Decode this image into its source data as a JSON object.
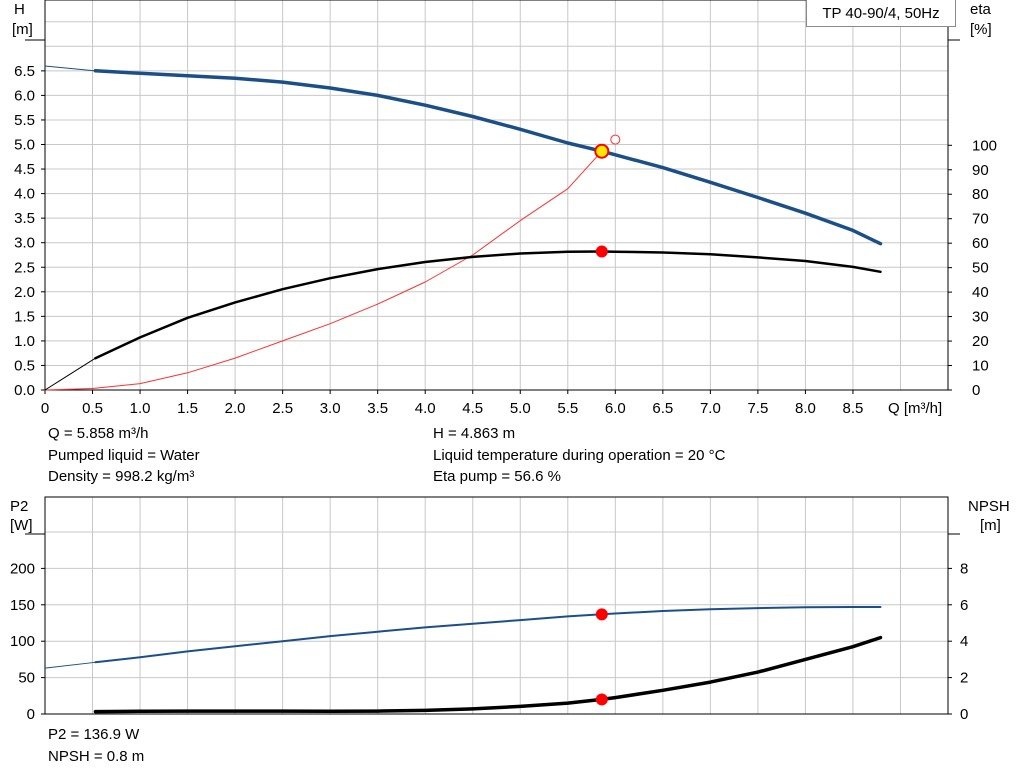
{
  "model_label": "TP 40-90/4, 50Hz",
  "top_axes": {
    "y_left_label": [
      "H",
      "[m]"
    ],
    "y_right_label": [
      "eta",
      "[%]"
    ],
    "x_label": "Q [m³/h]",
    "y_left_ticks": [
      "0.0",
      "0.5",
      "1.0",
      "1.5",
      "2.0",
      "2.5",
      "3.0",
      "3.5",
      "4.0",
      "4.5",
      "5.0",
      "5.5",
      "6.0",
      "6.5"
    ],
    "y_right_ticks": [
      "0",
      "10",
      "20",
      "30",
      "40",
      "50",
      "60",
      "70",
      "80",
      "90",
      "100"
    ],
    "x_ticks": [
      "0",
      "0.5",
      "1.0",
      "1.5",
      "2.0",
      "2.5",
      "3.0",
      "3.5",
      "4.0",
      "4.5",
      "5.0",
      "5.5",
      "6.0",
      "6.5",
      "7.0",
      "7.5",
      "8.0",
      "8.5"
    ]
  },
  "bottom_axes": {
    "y_left_label": [
      "P2",
      "[W]"
    ],
    "y_right_label": [
      "NPSH",
      "[m]"
    ],
    "y_left_ticks": [
      "0",
      "50",
      "100",
      "150",
      "200"
    ],
    "y_right_ticks": [
      "0",
      "2",
      "4",
      "6",
      "8"
    ]
  },
  "operating_point": {
    "q": "Q = 5.858 m³/h",
    "h": "H = 4.863 m",
    "liquid": "Pumped liquid = Water",
    "temperature": "Liquid temperature during operation = 20 °C",
    "density": "Density = 998.2 kg/m³",
    "eta": "Eta pump = 56.6 %",
    "p2": "P2 = 136.9 W",
    "npsh": "NPSH = 0.8 m"
  },
  "colors": {
    "head": "#1b4f8a",
    "power": "#1b4f8a",
    "eta": "#000000",
    "npsh": "#000000",
    "system": "#ff3030",
    "point": "#ff0000",
    "duty": "#ffe800"
  },
  "chart_data": [
    {
      "type": "line",
      "title": "TP 40-90/4, 50Hz",
      "xlabel": "Q [m³/h]",
      "ylabel": "H [m]",
      "y2label": "eta [%]",
      "xlim": [
        0,
        9.5
      ],
      "ylim": [
        0,
        7.0
      ],
      "y2lim": [
        0,
        100
      ],
      "grid": true,
      "series": [
        {
          "name": "H",
          "axis": "left",
          "x": [
            0,
            0.53,
            1.0,
            1.5,
            2.0,
            2.5,
            3.0,
            3.5,
            4.0,
            4.5,
            5.0,
            5.5,
            5.858,
            6.0,
            6.5,
            7.0,
            7.5,
            8.0,
            8.5,
            8.79
          ],
          "y": [
            6.6,
            6.5,
            6.45,
            6.4,
            6.35,
            6.27,
            6.15,
            6.0,
            5.8,
            5.57,
            5.31,
            5.03,
            4.863,
            4.79,
            4.53,
            4.23,
            3.92,
            3.6,
            3.25,
            2.98
          ]
        },
        {
          "name": "eta",
          "axis": "right",
          "x": [
            0,
            0.53,
            1.0,
            1.5,
            2.0,
            2.5,
            3.0,
            3.5,
            4.0,
            4.5,
            5.0,
            5.5,
            5.858,
            6.0,
            6.5,
            7.0,
            7.5,
            8.0,
            8.5,
            8.79
          ],
          "y": [
            0,
            13,
            21.5,
            29.5,
            35.8,
            41.2,
            45.7,
            49.4,
            52.3,
            54.4,
            55.8,
            56.5,
            56.6,
            56.5,
            56.2,
            55.5,
            54.2,
            52.7,
            50.3,
            48.3
          ]
        },
        {
          "name": "system",
          "axis": "left",
          "x": [
            0,
            0.5,
            1.0,
            1.5,
            2.0,
            2.5,
            3.0,
            3.5,
            4.0,
            4.5,
            5.0,
            5.5,
            5.858
          ],
          "y": [
            0,
            0.03,
            0.13,
            0.35,
            0.65,
            1.0,
            1.35,
            1.75,
            2.2,
            2.75,
            3.45,
            4.1,
            4.863
          ]
        }
      ],
      "points": [
        {
          "name": "duty-point",
          "x": 5.858,
          "y": 4.863,
          "axis": "left"
        },
        {
          "name": "eta-point",
          "x": 5.858,
          "y": 56.6,
          "axis": "right"
        },
        {
          "name": "setpoint",
          "x": 6.0,
          "y": 5.1,
          "axis": "left"
        }
      ]
    },
    {
      "type": "line",
      "xlim": [
        0,
        9.5
      ],
      "ylabel": "P2 [W]",
      "y2label": "NPSH [m]",
      "ylim": [
        0,
        200
      ],
      "y2lim": [
        0,
        8
      ],
      "grid": true,
      "series": [
        {
          "name": "P2",
          "axis": "left",
          "x": [
            0,
            0.53,
            1.0,
            1.5,
            2.0,
            2.5,
            3.0,
            3.5,
            4.0,
            4.5,
            5.0,
            5.5,
            5.858,
            6.0,
            6.5,
            7.0,
            7.5,
            8.0,
            8.5,
            8.79
          ],
          "y": [
            63,
            71,
            78,
            86,
            93,
            100,
            107,
            113,
            119,
            124,
            129,
            134,
            136.9,
            138,
            141.5,
            144,
            145.5,
            146.5,
            147,
            147
          ]
        },
        {
          "name": "NPSH",
          "axis": "right",
          "x": [
            0.53,
            1.0,
            1.5,
            2.0,
            2.5,
            3.0,
            3.5,
            4.0,
            4.5,
            5.0,
            5.5,
            5.858,
            6.0,
            6.5,
            7.0,
            7.5,
            8.0,
            8.5,
            8.79
          ],
          "y": [
            0.13,
            0.15,
            0.16,
            0.16,
            0.16,
            0.15,
            0.16,
            0.2,
            0.28,
            0.42,
            0.6,
            0.8,
            0.9,
            1.3,
            1.75,
            2.3,
            3.0,
            3.7,
            4.2
          ]
        }
      ],
      "points": [
        {
          "name": "p2-point",
          "x": 5.858,
          "y": 136.9,
          "axis": "left"
        },
        {
          "name": "npsh-point",
          "x": 5.858,
          "y": 0.8,
          "axis": "right"
        }
      ]
    }
  ]
}
